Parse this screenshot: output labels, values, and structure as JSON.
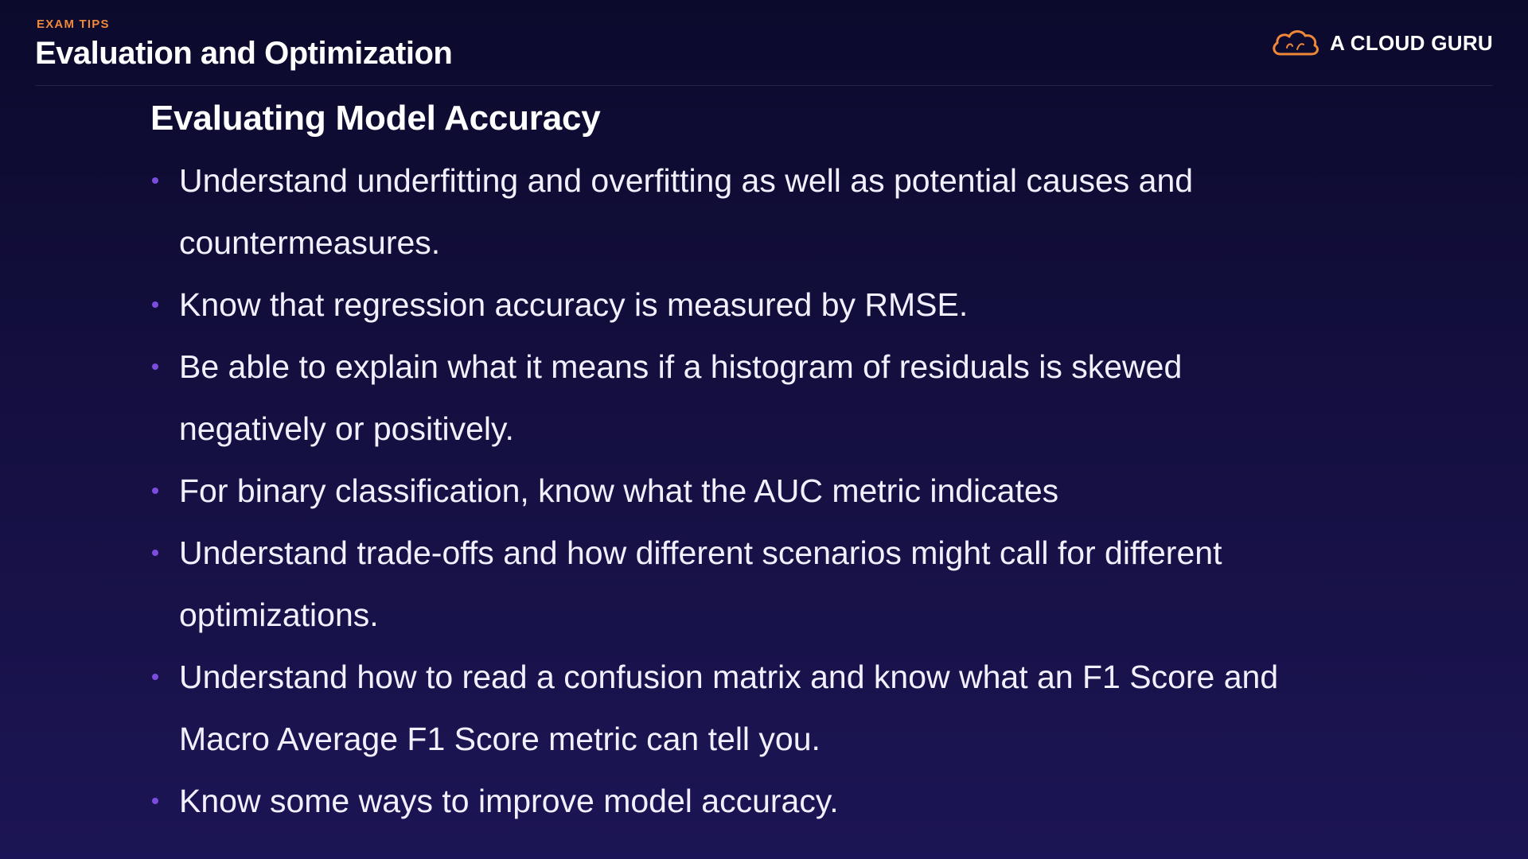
{
  "header": {
    "eyebrow": "EXAM TIPS",
    "title": "Evaluation and Optimization"
  },
  "brand": {
    "name": "A CLOUD GURU",
    "logo_icon": "cloud-logo-icon",
    "logo_color": "#f0883a"
  },
  "colors": {
    "accent": "#f0883a",
    "bullet": "#7c4ce0",
    "background_top": "#0b0a2c",
    "background_bottom": "#1c1555"
  },
  "section": {
    "title": "Evaluating Model Accuracy",
    "bullets": [
      "Understand underfitting and overfitting as well as potential causes and countermeasures.",
      "Know that regression accuracy is measured by RMSE.",
      "Be able to explain what it means if a histogram of residuals is skewed negatively or positively.",
      "For binary classification, know what the AUC metric indicates",
      "Understand trade-offs and how different scenarios might call for different optimizations.",
      "Understand how to read a confusion matrix and know what an F1 Score and Macro Average F1 Score metric can tell you.",
      "Know some ways to improve model accuracy."
    ]
  }
}
